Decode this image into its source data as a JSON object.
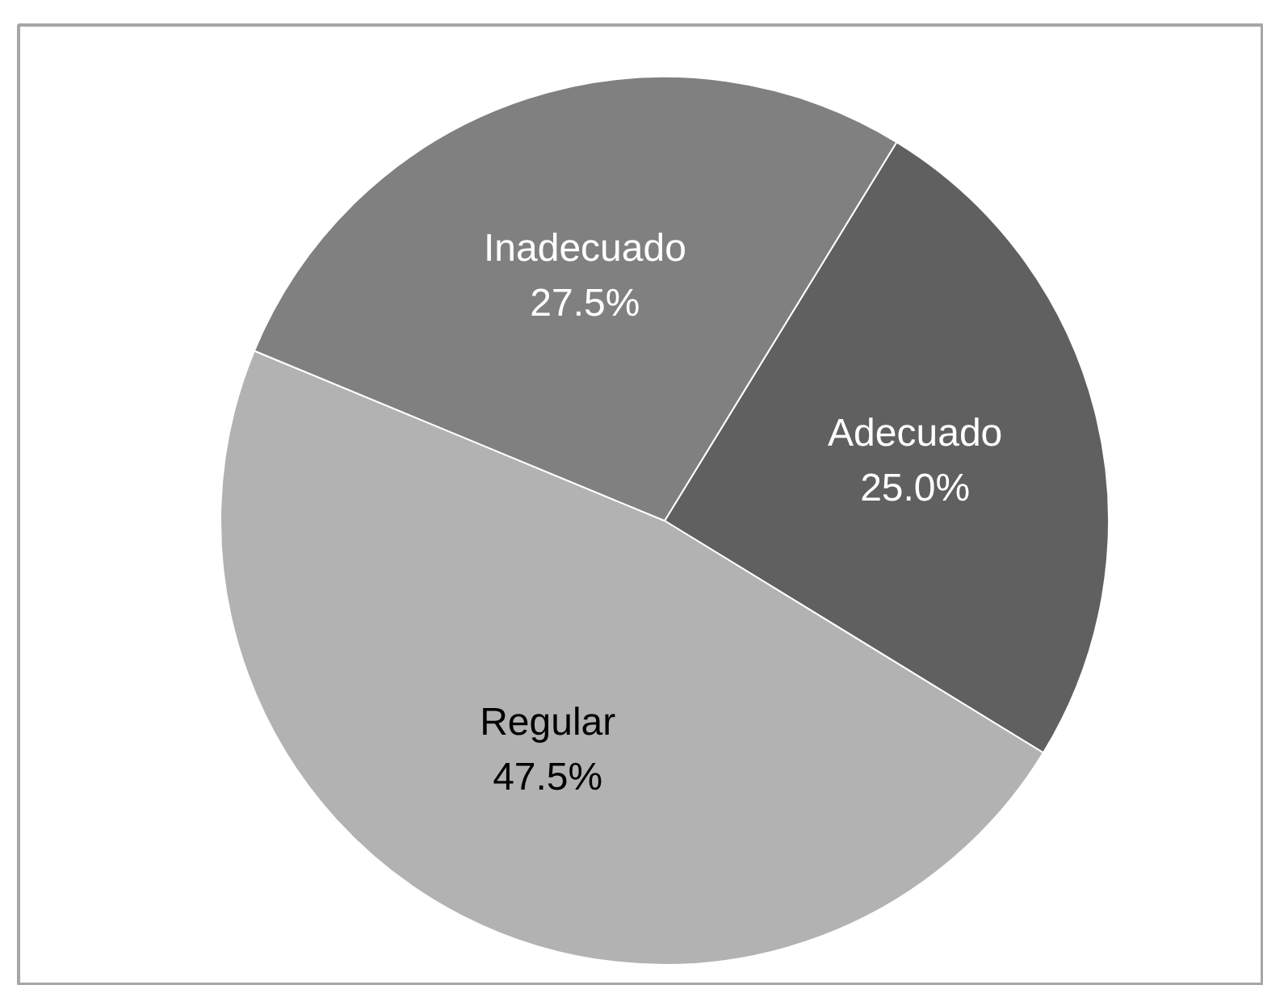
{
  "chart_data": {
    "type": "pie",
    "categories": [
      "Adecuado",
      "Regular",
      "Inadecuado"
    ],
    "values": [
      25.0,
      47.5,
      27.5
    ],
    "colors": [
      "#606060",
      "#b2b2b2",
      "#808080"
    ],
    "value_labels": [
      "25.0%",
      "47.5%",
      "27.5%"
    ],
    "legend": false
  }
}
